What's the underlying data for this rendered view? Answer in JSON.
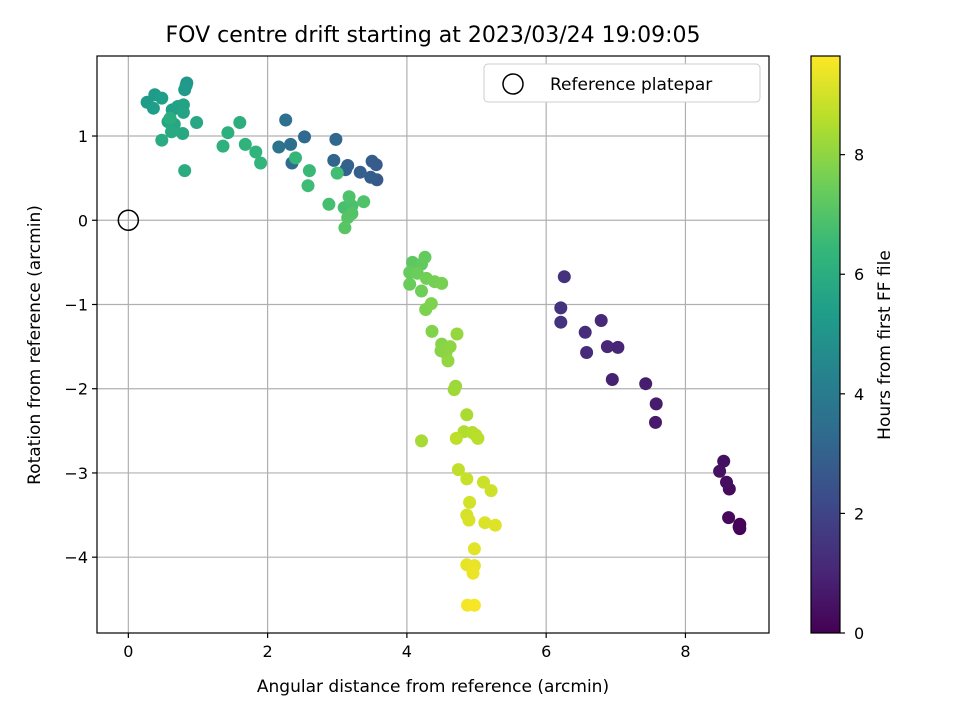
{
  "chart_data": {
    "type": "scatter",
    "title": "FOV centre drift starting at 2023/03/24 19:09:05",
    "xlabel": "Angular distance from reference (arcmin)",
    "ylabel": "Rotation from reference (arcmin)",
    "xlim": [
      -0.45,
      9.2
    ],
    "ylim": [
      -4.9,
      1.95
    ],
    "xticks": [
      0,
      2,
      4,
      6,
      8
    ],
    "xtick_labels": [
      "0",
      "2",
      "4",
      "6",
      "8"
    ],
    "yticks": [
      -4,
      -3,
      -2,
      -1,
      0,
      1
    ],
    "ytick_labels": [
      "−4",
      "−3",
      "−2",
      "−1",
      "0",
      "1"
    ],
    "grid": true,
    "legend": {
      "placement": "top-right",
      "entries": [
        "Reference platepar"
      ]
    },
    "reference_point": {
      "label": "Reference platepar",
      "x": 0,
      "y": 0
    },
    "colorbar": {
      "label": "Hours from first FF file",
      "colormap": "viridis",
      "min": 0,
      "max": 9.65,
      "ticks": [
        0,
        2,
        4,
        6,
        8
      ],
      "tick_labels": [
        "0",
        "2",
        "4",
        "6",
        "8"
      ]
    },
    "series": [
      {
        "points": [
          [
            8.78,
            -3.66,
            0.05
          ],
          [
            8.78,
            -3.61,
            0.1
          ],
          [
            8.77,
            -3.64,
            0.15
          ],
          [
            8.62,
            -3.53,
            0.2
          ],
          [
            8.63,
            -3.19,
            0.3
          ],
          [
            8.59,
            -3.11,
            0.35
          ],
          [
            8.55,
            -2.86,
            0.4
          ],
          [
            8.49,
            -2.98,
            0.45
          ],
          [
            7.57,
            -2.4,
            0.7
          ],
          [
            7.58,
            -2.18,
            0.75
          ],
          [
            7.43,
            -1.94,
            0.8
          ],
          [
            6.95,
            -1.89,
            0.9
          ],
          [
            7.03,
            -1.51,
            1.0
          ],
          [
            6.88,
            -1.5,
            1.05
          ],
          [
            6.79,
            -1.19,
            1.1
          ],
          [
            6.58,
            -1.57,
            1.2
          ],
          [
            6.56,
            -1.33,
            1.25
          ],
          [
            6.26,
            -0.67,
            1.35
          ],
          [
            6.21,
            -1.04,
            1.4
          ],
          [
            6.21,
            -1.21,
            1.45
          ],
          [
            3.57,
            0.48,
            2.7
          ],
          [
            3.56,
            0.66,
            2.75
          ],
          [
            3.5,
            0.7,
            2.8
          ],
          [
            3.48,
            0.51,
            2.85
          ],
          [
            3.33,
            0.57,
            2.9
          ],
          [
            3.15,
            0.65,
            3.0
          ],
          [
            3.12,
            0.6,
            3.05
          ],
          [
            2.95,
            0.71,
            3.1
          ],
          [
            2.98,
            0.96,
            3.2
          ],
          [
            2.53,
            0.99,
            3.3
          ],
          [
            2.35,
            0.68,
            3.4
          ],
          [
            2.33,
            0.9,
            3.5
          ],
          [
            2.26,
            1.19,
            3.6
          ],
          [
            2.16,
            0.87,
            3.65
          ],
          [
            0.84,
            1.63,
            5.1
          ],
          [
            0.83,
            1.6,
            5.15
          ],
          [
            0.81,
            1.55,
            5.2
          ],
          [
            0.38,
            1.49,
            5.25
          ],
          [
            0.27,
            1.4,
            5.3
          ],
          [
            0.36,
            1.33,
            5.35
          ],
          [
            0.48,
            1.45,
            5.4
          ],
          [
            0.63,
            1.31,
            5.45
          ],
          [
            0.71,
            1.35,
            5.5
          ],
          [
            0.79,
            1.37,
            5.55
          ],
          [
            0.79,
            1.28,
            5.6
          ],
          [
            0.57,
            1.17,
            5.65
          ],
          [
            0.66,
            1.14,
            5.7
          ],
          [
            0.98,
            1.16,
            5.75
          ],
          [
            0.78,
            1.03,
            5.8
          ],
          [
            0.62,
            1.05,
            5.85
          ],
          [
            0.48,
            0.95,
            5.9
          ],
          [
            0.81,
            0.59,
            5.95
          ],
          [
            0.6,
            1.21,
            6.0
          ],
          [
            1.6,
            1.16,
            6.05
          ],
          [
            1.43,
            1.04,
            6.1
          ],
          [
            1.36,
            0.88,
            6.15
          ],
          [
            1.68,
            0.9,
            6.2
          ],
          [
            1.83,
            0.81,
            6.25
          ],
          [
            1.9,
            0.68,
            6.3
          ],
          [
            2.4,
            0.74,
            6.4
          ],
          [
            2.6,
            0.59,
            6.5
          ],
          [
            2.58,
            0.41,
            6.6
          ],
          [
            3.0,
            0.56,
            6.7
          ],
          [
            2.88,
            0.19,
            6.75
          ],
          [
            3.1,
            0.15,
            6.8
          ],
          [
            3.21,
            0.17,
            6.85
          ],
          [
            3.17,
            0.28,
            6.9
          ],
          [
            3.38,
            0.22,
            6.95
          ],
          [
            3.21,
            0.08,
            7.0
          ],
          [
            3.15,
            0.03,
            7.05
          ],
          [
            3.11,
            -0.09,
            7.1
          ],
          [
            4.08,
            -0.5,
            7.2
          ],
          [
            4.21,
            -0.52,
            7.25
          ],
          [
            4.26,
            -0.44,
            7.3
          ],
          [
            4.04,
            -0.62,
            7.35
          ],
          [
            4.04,
            -0.76,
            7.4
          ],
          [
            4.15,
            -0.63,
            7.45
          ],
          [
            4.21,
            -0.84,
            7.5
          ],
          [
            4.28,
            -0.69,
            7.55
          ],
          [
            4.4,
            -0.73,
            7.6
          ],
          [
            4.5,
            -0.75,
            7.65
          ],
          [
            4.27,
            -1.06,
            7.7
          ],
          [
            4.35,
            -0.99,
            7.75
          ],
          [
            4.36,
            -1.32,
            7.8
          ],
          [
            4.5,
            -1.47,
            7.85
          ],
          [
            4.49,
            -1.55,
            7.9
          ],
          [
            4.56,
            -1.58,
            7.95
          ],
          [
            4.62,
            -1.5,
            8.0
          ],
          [
            4.59,
            -1.67,
            8.05
          ],
          [
            4.72,
            -1.35,
            8.1
          ],
          [
            4.7,
            -1.97,
            8.2
          ],
          [
            4.68,
            -2.01,
            8.25
          ],
          [
            4.21,
            -2.62,
            8.35
          ],
          [
            4.86,
            -2.31,
            8.4
          ],
          [
            4.82,
            -2.51,
            8.5
          ],
          [
            4.94,
            -2.52,
            8.55
          ],
          [
            4.99,
            -2.55,
            8.6
          ],
          [
            5.02,
            -2.59,
            8.65
          ],
          [
            4.71,
            -2.59,
            8.7
          ],
          [
            4.74,
            -2.96,
            8.75
          ],
          [
            4.86,
            -3.07,
            8.85
          ],
          [
            5.1,
            -3.11,
            8.9
          ],
          [
            5.21,
            -3.21,
            8.95
          ],
          [
            4.9,
            -3.35,
            9.0
          ],
          [
            4.86,
            -3.5,
            9.05
          ],
          [
            4.89,
            -3.56,
            9.1
          ],
          [
            5.12,
            -3.59,
            9.15
          ],
          [
            5.27,
            -3.62,
            9.2
          ],
          [
            4.97,
            -3.9,
            9.25
          ],
          [
            4.86,
            -4.09,
            9.3
          ],
          [
            4.97,
            -4.1,
            9.35
          ],
          [
            4.95,
            -4.19,
            9.4
          ],
          [
            4.87,
            -4.57,
            9.5
          ],
          [
            4.97,
            -4.57,
            9.55
          ]
        ]
      }
    ]
  }
}
